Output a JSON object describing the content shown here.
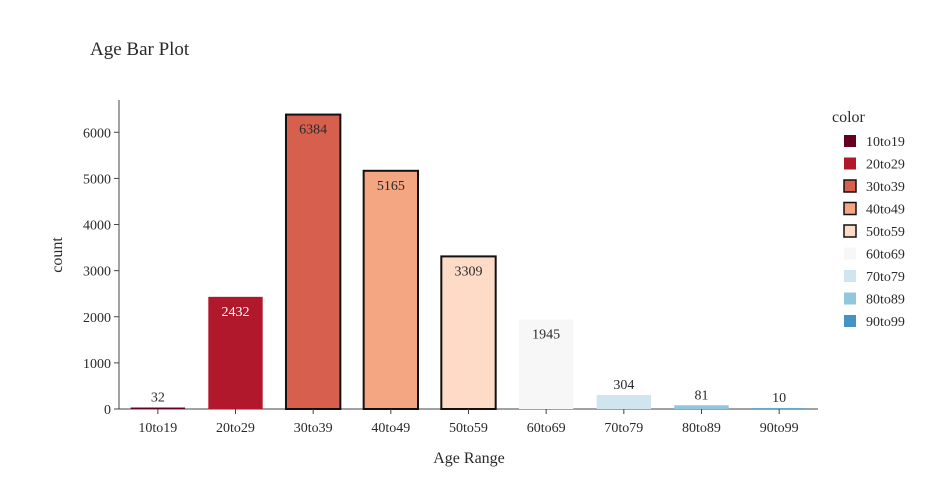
{
  "chart_data": {
    "type": "bar",
    "title": "Age Bar Plot",
    "xlabel": "Age Range",
    "ylabel": "count",
    "categories": [
      "10to19",
      "20to29",
      "30to39",
      "40to49",
      "50to59",
      "60to69",
      "70to79",
      "80to89",
      "90to99"
    ],
    "values": [
      32,
      2432,
      6384,
      5165,
      3309,
      1945,
      304,
      81,
      10
    ],
    "ylim": [
      0,
      6700
    ],
    "yticks": [
      0,
      1000,
      2000,
      3000,
      4000,
      5000,
      6000
    ],
    "colors": [
      "#67001f",
      "#b2182b",
      "#d6604d",
      "#f4a582",
      "#fddbc7",
      "#f7f7f7",
      "#d1e5f0",
      "#92c5de",
      "#4393c3"
    ],
    "outlined": [
      false,
      false,
      true,
      true,
      true,
      false,
      false,
      false,
      false
    ],
    "grid": false,
    "legend": {
      "title": "color",
      "placement": "right",
      "entries": [
        "10to19",
        "20to29",
        "30to39",
        "40to49",
        "50to59",
        "60to69",
        "70to79",
        "80to89",
        "90to99"
      ]
    }
  }
}
